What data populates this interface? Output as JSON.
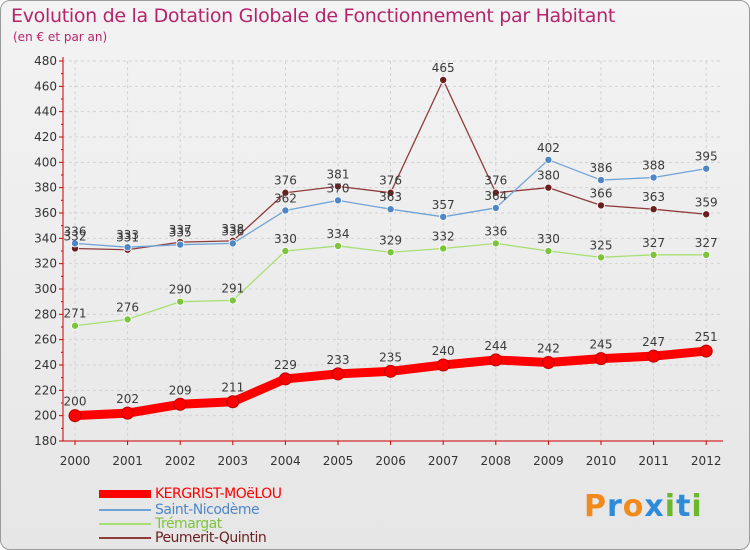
{
  "colors": {
    "title": "#b5246b",
    "background": "#eeeeee",
    "axis": "#cc0000"
  },
  "logo": {
    "letters": [
      "P",
      "r",
      "o",
      "x",
      "i",
      "t",
      "i"
    ],
    "colors": [
      "#f08a1d",
      "#2e8bd8",
      "#f08a1d",
      "#2e8bd8",
      "#6bb82d",
      "#2e8bd8",
      "#6bb82d"
    ]
  },
  "chart_data": {
    "type": "line",
    "title": "Evolution de la Dotation Globale de Fonctionnement par Habitant",
    "subtitle": "(en € et par an)",
    "xlabel": "",
    "ylabel": "",
    "x": [
      "2000",
      "2001",
      "2002",
      "2003",
      "2004",
      "2005",
      "2006",
      "2007",
      "2008",
      "2009",
      "2010",
      "2011",
      "2012"
    ],
    "ylim": [
      180,
      480
    ],
    "yticks": [
      180,
      200,
      220,
      240,
      260,
      280,
      300,
      320,
      340,
      360,
      380,
      400,
      420,
      440,
      460,
      480
    ],
    "grid": true,
    "legend_position": "bottom-left",
    "series": [
      {
        "name": "KERGRIST-MOëLOU",
        "color": "#ff0000",
        "bold": true,
        "values": [
          200,
          202,
          209,
          211,
          229,
          233,
          235,
          240,
          244,
          242,
          245,
          247,
          251
        ],
        "labels": [
          "200",
          "202",
          "209",
          "211",
          "229",
          "233",
          "235",
          "240",
          "244",
          "242",
          "245",
          "247",
          "251"
        ]
      },
      {
        "name": "Saint-Nicodème",
        "color": "#6fa3d6",
        "marker": "#4f86c6",
        "values": [
          336,
          333,
          335,
          336,
          362,
          370,
          363,
          357,
          364,
          402,
          386,
          388,
          395
        ],
        "labels": [
          "336",
          "333",
          "335",
          "336",
          "362",
          "370",
          "363",
          "357",
          "364",
          "402",
          "386",
          "388",
          "395"
        ]
      },
      {
        "name": "Trémargat",
        "color": "#a8df74",
        "marker": "#7dc43c",
        "values": [
          271,
          276,
          290,
          291,
          330,
          334,
          329,
          332,
          336,
          330,
          325,
          327,
          327
        ],
        "labels": [
          "271",
          "276",
          "290",
          "291",
          "330",
          "334",
          "329",
          "332",
          "336",
          "330",
          "325",
          "327",
          "327"
        ]
      },
      {
        "name": "Peumerit-Quintin",
        "color": "#8f3b3b",
        "marker": "#6a1f1f",
        "values": [
          332,
          331,
          337,
          338,
          376,
          381,
          376,
          465,
          376,
          380,
          366,
          363,
          359
        ],
        "labels": [
          "332",
          "331",
          "337",
          "338",
          "376",
          "381",
          "376",
          "465",
          "376",
          "380",
          "366",
          "363",
          "359"
        ]
      }
    ]
  }
}
